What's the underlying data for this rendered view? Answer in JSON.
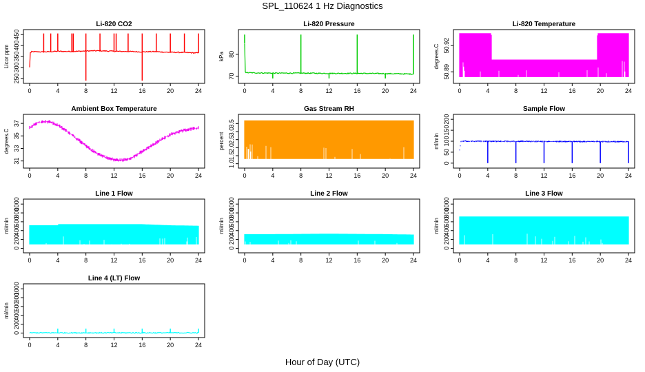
{
  "title": "SPL_110624  1 Hz Diagnostics",
  "xlabel": "Hour of Day (UTC)",
  "chart_data": [
    {
      "type": "line",
      "title": "Li-820 CO2",
      "ylabel": "Licor ppm",
      "color": "#ff0000",
      "xlim": [
        0,
        24
      ],
      "ylim": [
        240,
        460
      ],
      "xticks": [
        0,
        4,
        8,
        12,
        16,
        20,
        24
      ],
      "yticks": [
        250,
        300,
        350,
        400,
        450
      ],
      "series": [
        {
          "x": [
            0,
            0.1,
            0.2,
            0.3,
            2,
            3,
            4,
            5,
            6,
            7,
            8,
            9,
            10,
            11,
            12,
            13,
            14,
            15,
            16,
            17,
            18,
            19,
            20,
            21,
            22,
            23,
            24
          ],
          "y": [
            300,
            370,
            368,
            372,
            371,
            372,
            374,
            373,
            373,
            374,
            375,
            376,
            376,
            375,
            374,
            373,
            373,
            372,
            371,
            372,
            372,
            370,
            369,
            369,
            368,
            367,
            366
          ],
          "spikes_up": [
            2.0,
            3.0,
            4.0,
            6.0,
            6.2,
            8.0,
            10.0,
            12.0,
            12.3,
            14.0,
            16.0,
            18.0,
            20.0,
            22.0,
            24.0
          ],
          "spike_up_value": 455,
          "spikes_down": [
            8.0,
            16.0
          ],
          "spike_down_value": 240
        }
      ]
    },
    {
      "type": "line",
      "title": "Li-820 Pressure",
      "ylabel": "kPa",
      "color": "#00cc00",
      "xlim": [
        0,
        24
      ],
      "ylim": [
        68,
        90
      ],
      "xticks": [
        0,
        4,
        8,
        12,
        16,
        20,
        24
      ],
      "yticks": [
        70,
        80
      ],
      "series": [
        {
          "x": [
            0,
            0.1,
            0.3,
            4,
            8,
            12,
            16,
            20,
            24
          ],
          "y": [
            85,
            71.8,
            71.6,
            71.4,
            71.4,
            71.3,
            71.3,
            71.2,
            71.0
          ],
          "spikes_up": [
            0.0,
            8.0,
            16.0,
            24.0
          ],
          "spike_up_value": 89,
          "spikes_down": [
            4.0,
            12.0,
            20.0
          ],
          "spike_down_value": 69
        }
      ]
    },
    {
      "type": "area",
      "title": "Li-820 Temperature",
      "ylabel": "degrees.C",
      "color": "#ff00ff",
      "xlim": [
        0,
        24
      ],
      "ylim": [
        50.88,
        50.935
      ],
      "xticks": [
        0,
        4,
        8,
        12,
        16,
        20,
        24
      ],
      "yticks": [
        50.89,
        50.92
      ],
      "ytick_labels": [
        "50.89",
        "50.92"
      ],
      "series": [
        {
          "x": [
            0,
            4.5,
            4.6,
            19.5,
            19.6,
            24
          ],
          "low": [
            50.884,
            50.884,
            50.884,
            50.884,
            50.884,
            50.884
          ],
          "high": [
            50.934,
            50.934,
            50.904,
            50.904,
            50.934,
            50.934
          ]
        }
      ]
    },
    {
      "type": "line",
      "title": "Ambient Box Temperature",
      "ylabel": "degrees.C",
      "color": "#ee00ee",
      "xlim": [
        0,
        24
      ],
      "ylim": [
        30.3,
        38
      ],
      "xticks": [
        0,
        4,
        8,
        12,
        16,
        20,
        24
      ],
      "yticks": [
        31,
        33,
        35,
        37
      ],
      "series": [
        {
          "x": [
            0,
            1,
            2,
            3,
            4,
            5,
            6,
            7,
            8,
            9,
            10,
            11,
            12,
            13,
            14,
            15,
            16,
            17,
            18,
            19,
            20,
            21,
            22,
            23,
            24
          ],
          "y": [
            36.3,
            37.0,
            37.3,
            37.2,
            36.7,
            36.0,
            35.2,
            34.3,
            33.4,
            32.6,
            32.0,
            31.5,
            31.2,
            31.1,
            31.3,
            31.8,
            32.5,
            33.2,
            33.9,
            34.6,
            35.2,
            35.6,
            35.9,
            36.1,
            36.3
          ],
          "band": 0.6
        }
      ]
    },
    {
      "type": "area",
      "title": "Gas Stream RH",
      "ylabel": "percent",
      "color": "#ff9900",
      "xlim": [
        0,
        24
      ],
      "ylim": [
        0.9,
        3.9
      ],
      "xticks": [
        0,
        4,
        8,
        12,
        16,
        20,
        24
      ],
      "yticks": [
        1.0,
        1.5,
        2.0,
        2.5,
        3.0,
        3.5
      ],
      "ytick_labels": [
        "1.0",
        "1.5",
        "2.0",
        "2.5",
        "3.0",
        "3.5"
      ],
      "series": [
        {
          "x": [
            0,
            24
          ],
          "low": [
            1.3,
            1.3
          ],
          "high": [
            3.7,
            3.7
          ]
        }
      ]
    },
    {
      "type": "line",
      "title": "Sample Flow",
      "ylabel": "ml/min",
      "color": "#0000ff",
      "xlim": [
        0,
        24
      ],
      "ylim": [
        -10,
        210
      ],
      "xticks": [
        0,
        4,
        8,
        12,
        16,
        20,
        24
      ],
      "yticks": [
        0,
        50,
        100,
        150,
        200
      ],
      "series": [
        {
          "x": [
            0,
            0.2,
            24
          ],
          "y": [
            60,
            100,
            98
          ],
          "band": 8,
          "spikes_down": [
            4.0,
            8.0,
            12.0,
            16.0,
            20.0,
            24.0
          ],
          "spike_down_value": 0
        }
      ]
    },
    {
      "type": "area",
      "title": "Line 1 Flow",
      "ylabel": "ml/min",
      "color": "#00ffff",
      "xlim": [
        0,
        24
      ],
      "ylim": [
        -40,
        1050
      ],
      "xticks": [
        0,
        4,
        8,
        12,
        16,
        20,
        24
      ],
      "yticks": [
        0,
        200,
        400,
        600,
        800,
        1000
      ],
      "series": [
        {
          "x": [
            0,
            4,
            4.1,
            8,
            16,
            20,
            24
          ],
          "low": [
            90,
            90,
            90,
            90,
            90,
            90,
            90
          ],
          "high": [
            520,
            520,
            545,
            545,
            545,
            520,
            510
          ]
        }
      ]
    },
    {
      "type": "area",
      "title": "Line 2 Flow",
      "ylabel": "ml/min",
      "color": "#00ffff",
      "xlim": [
        0,
        24
      ],
      "ylim": [
        -40,
        1050
      ],
      "xticks": [
        0,
        4,
        8,
        12,
        16,
        20,
        24
      ],
      "yticks": [
        0,
        200,
        400,
        600,
        800,
        1000
      ],
      "series": [
        {
          "x": [
            0,
            4,
            12,
            20,
            24
          ],
          "low": [
            90,
            90,
            90,
            90,
            90
          ],
          "high": [
            320,
            320,
            330,
            320,
            310
          ]
        }
      ]
    },
    {
      "type": "area",
      "title": "Line 3 Flow",
      "ylabel": "ml/min",
      "color": "#00ffff",
      "xlim": [
        0,
        24
      ],
      "ylim": [
        -40,
        1050
      ],
      "xticks": [
        0,
        4,
        8,
        12,
        16,
        20,
        24
      ],
      "yticks": [
        0,
        200,
        400,
        600,
        800,
        1000
      ],
      "series": [
        {
          "x": [
            0,
            24
          ],
          "low": [
            90,
            90
          ],
          "high": [
            720,
            720
          ]
        }
      ]
    },
    {
      "type": "line",
      "title": "Line 4 (LT) Flow",
      "ylabel": "ml/min",
      "color": "#00ffff",
      "xlim": [
        0,
        24
      ],
      "ylim": [
        -40,
        1050
      ],
      "xticks": [
        0,
        4,
        8,
        12,
        16,
        20,
        24
      ],
      "yticks": [
        0,
        200,
        400,
        600,
        800,
        1000
      ],
      "series": [
        {
          "x": [
            0,
            24
          ],
          "y": [
            5,
            5
          ],
          "spikes_up": [
            4.0,
            8.0,
            12.0,
            16.0,
            20.0,
            24.0
          ],
          "spike_up_value": 100
        }
      ]
    }
  ]
}
